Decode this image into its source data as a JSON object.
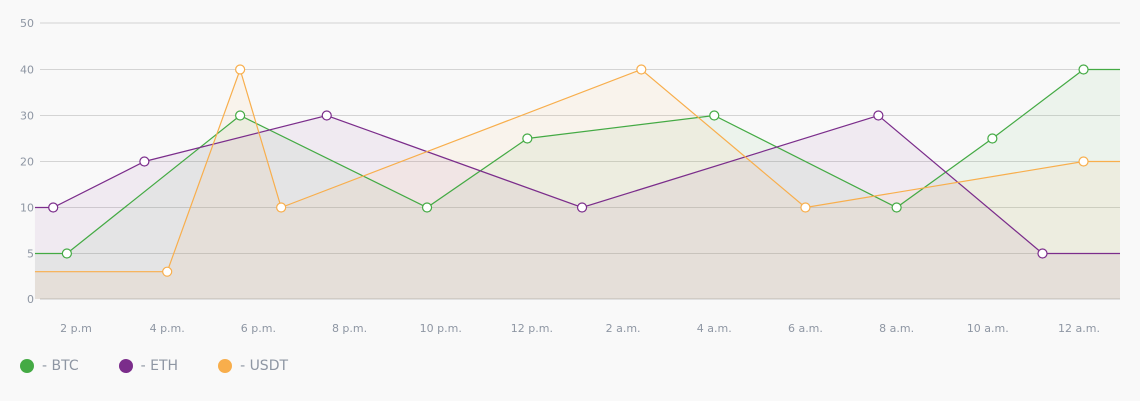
{
  "chart_data": {
    "type": "line",
    "categories": [
      "2 p.m",
      "4 p.m.",
      "6 p.m.",
      "8 p.m.",
      "10 p.m.",
      "12 p.m.",
      "2 a.m.",
      "4 a.m.",
      "6 a.m.",
      "8 a.m.",
      "10 a.m.",
      "12 a.m."
    ],
    "y_ticks": [
      "0",
      "5",
      "10",
      "20",
      "30",
      "40",
      "50"
    ],
    "grid": true,
    "legend_position": "bottom-left",
    "series": [
      {
        "name": "BTC",
        "color": "#44aa44",
        "points": [
          [
            -0.45,
            5
          ],
          [
            -0.1,
            5
          ],
          [
            1.8,
            30
          ],
          [
            3.85,
            10
          ],
          [
            4.95,
            25
          ],
          [
            7.0,
            30
          ],
          [
            9.0,
            10
          ],
          [
            10.05,
            25
          ],
          [
            11.05,
            40
          ],
          [
            11.45,
            40
          ]
        ]
      },
      {
        "name": "ETH",
        "color": "#7b2d8b",
        "points": [
          [
            -0.45,
            10
          ],
          [
            -0.25,
            10
          ],
          [
            0.75,
            20
          ],
          [
            2.75,
            30
          ],
          [
            5.55,
            10
          ],
          [
            8.8,
            30
          ],
          [
            10.6,
            5
          ],
          [
            11.45,
            5
          ]
        ]
      },
      {
        "name": "USDT",
        "color": "#f8ae4c",
        "points": [
          [
            -0.45,
            3
          ],
          [
            1.0,
            3
          ],
          [
            1.8,
            40
          ],
          [
            2.25,
            10
          ],
          [
            6.2,
            40
          ],
          [
            8.0,
            10
          ],
          [
            11.05,
            20
          ],
          [
            11.45,
            20
          ]
        ]
      }
    ]
  },
  "legend": [
    {
      "label": "- BTC",
      "color": "#44aa44"
    },
    {
      "label": "- ETH",
      "color": "#7b2d8b"
    },
    {
      "label": "- USDT",
      "color": "#f8ae4c"
    }
  ]
}
